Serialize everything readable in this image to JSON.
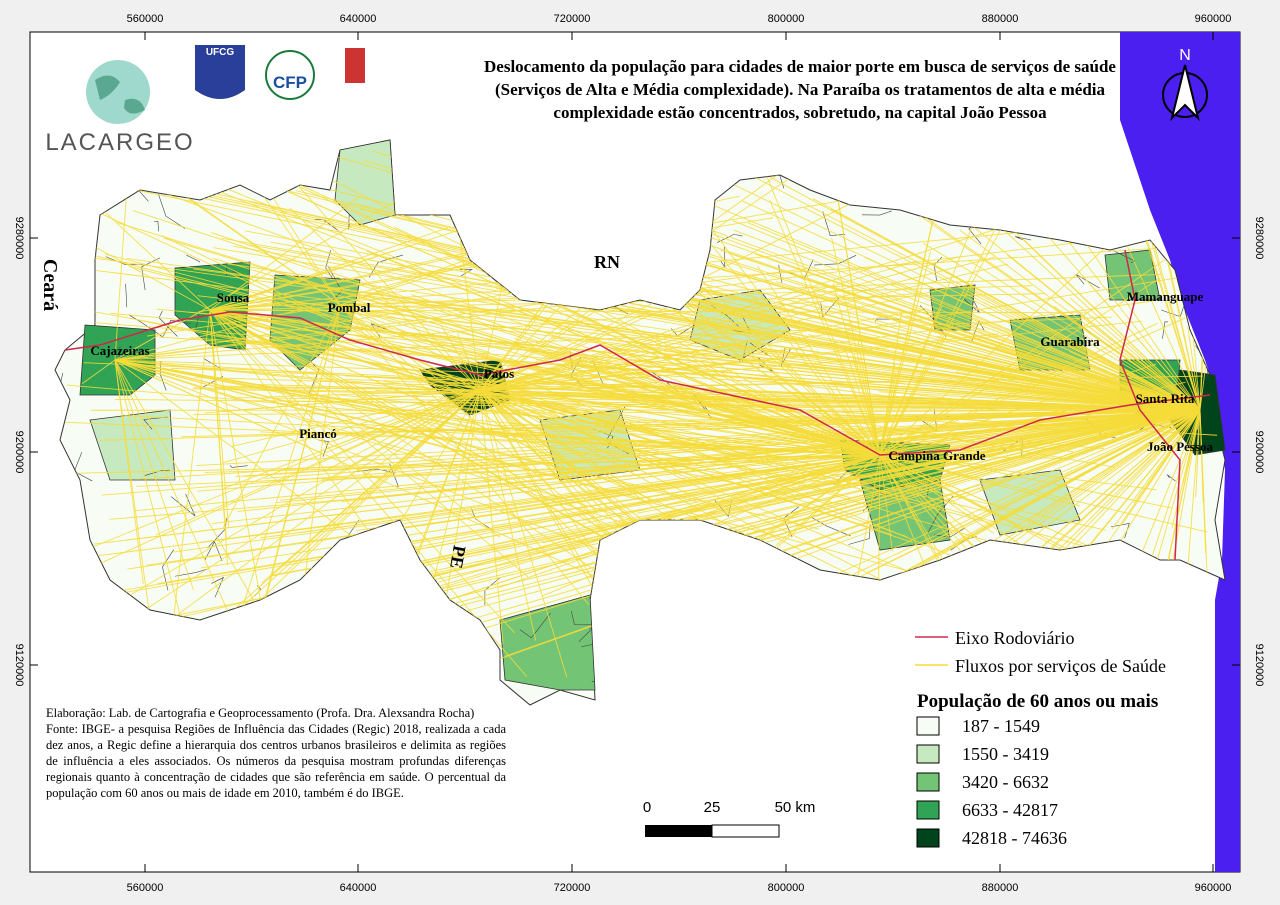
{
  "title": "Deslocamento da população para cidades de maior porte em busca de serviços de saúde (Serviços de Alta e Média complexidade). Na Paraíba os tratamentos de alta e média complexidade estão concentrados, sobretudo, na capital João Pessoa",
  "grid": {
    "x_labels": [
      560000,
      640000,
      720000,
      800000,
      880000,
      960000
    ],
    "y_labels": [
      9280000,
      9200000,
      9120000
    ]
  },
  "logos": {
    "ufcg": "UFCG",
    "cfp": "CFP",
    "lacargeo": "LACARGEO"
  },
  "north": "N",
  "neighbors": [
    "Ceará",
    "RN",
    "PE"
  ],
  "cities": [
    "Sousa",
    "Pombal",
    "Cajazeiras",
    "Patos",
    "Piancó",
    "Campina Grande",
    "Mamanguape",
    "Guarabira",
    "Santa Rita",
    "João Pessoa"
  ],
  "legend": {
    "road": "Eixo Rodoviário",
    "flows": "Fluxos por serviços de Saúde",
    "population_title": "População de 60 anos ou mais",
    "classes": [
      {
        "label": "187 - 1549",
        "color": "#f7fcf5"
      },
      {
        "label": "1550 - 3419",
        "color": "#c7e9c0"
      },
      {
        "label": "3420 - 6632",
        "color": "#74c476"
      },
      {
        "label": "6633 - 42817",
        "color": "#31a354"
      },
      {
        "label": "42818 - 74636",
        "color": "#00441b"
      }
    ]
  },
  "scale": {
    "labels": [
      "0",
      "25",
      "50 km"
    ]
  },
  "credits": [
    "Elaboração: Lab. de Cartografia e Geoprocessamento (Profa. Dra. Alexsandra Rocha)",
    "Fonte: IBGE- a pesquisa Regiões de Influência das Cidades (Regic) 2018, realizada a cada dez anos, a Regic define a hierarquia dos centros urbanos brasileiros e delimita as regiões de influência a eles associados. Os números da pesquisa mostram profundas diferenças regionais quanto à concentração de cidades que são referência em saúde. O percentual da população com 60 anos ou mais de idade em 2010, também é do IBGE."
  ]
}
